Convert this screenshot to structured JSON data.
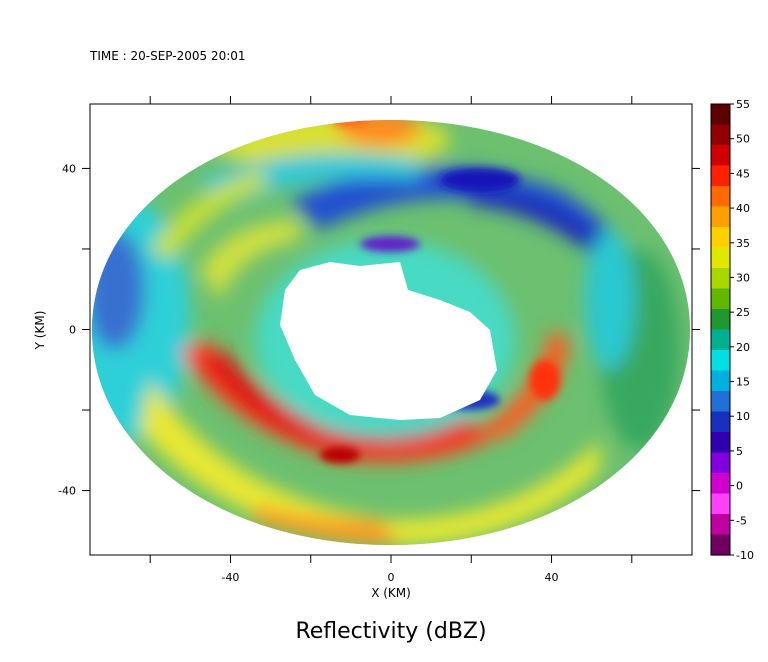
{
  "header": {
    "time_label": "TIME : 20-SEP-2005 20:01"
  },
  "chart_data": {
    "type": "heatmap",
    "title": "Reflectivity (dBZ)",
    "xlabel": "X (KM)",
    "ylabel": "Y (KM)",
    "xlim": [
      -75,
      75
    ],
    "ylim": [
      -56,
      56
    ],
    "x_ticks": [
      -40,
      0,
      40
    ],
    "y_ticks": [
      -40,
      0,
      40
    ],
    "colorbar": {
      "range": [
        -10,
        55
      ],
      "ticks": [
        55,
        50,
        45,
        40,
        35,
        30,
        25,
        20,
        15,
        10,
        5,
        0,
        -5,
        -10
      ],
      "colors": [
        "#5c0000",
        "#900000",
        "#d00000",
        "#ff2000",
        "#ff6a00",
        "#ffa000",
        "#ffd000",
        "#e0e800",
        "#a8d800",
        "#60b800",
        "#209830",
        "#00b090",
        "#00e0e0",
        "#00b0e0",
        "#2070d8",
        "#1830c0",
        "#3000b0",
        "#8000e0",
        "#d000d0",
        "#ff40ff",
        "#c000a0",
        "#700060"
      ]
    },
    "description_regions": {
      "eye_center_km": [
        0,
        0
      ],
      "eye_radius_km": 22,
      "data_radius_x_km": 74,
      "data_radius_y_km": 56
    }
  }
}
